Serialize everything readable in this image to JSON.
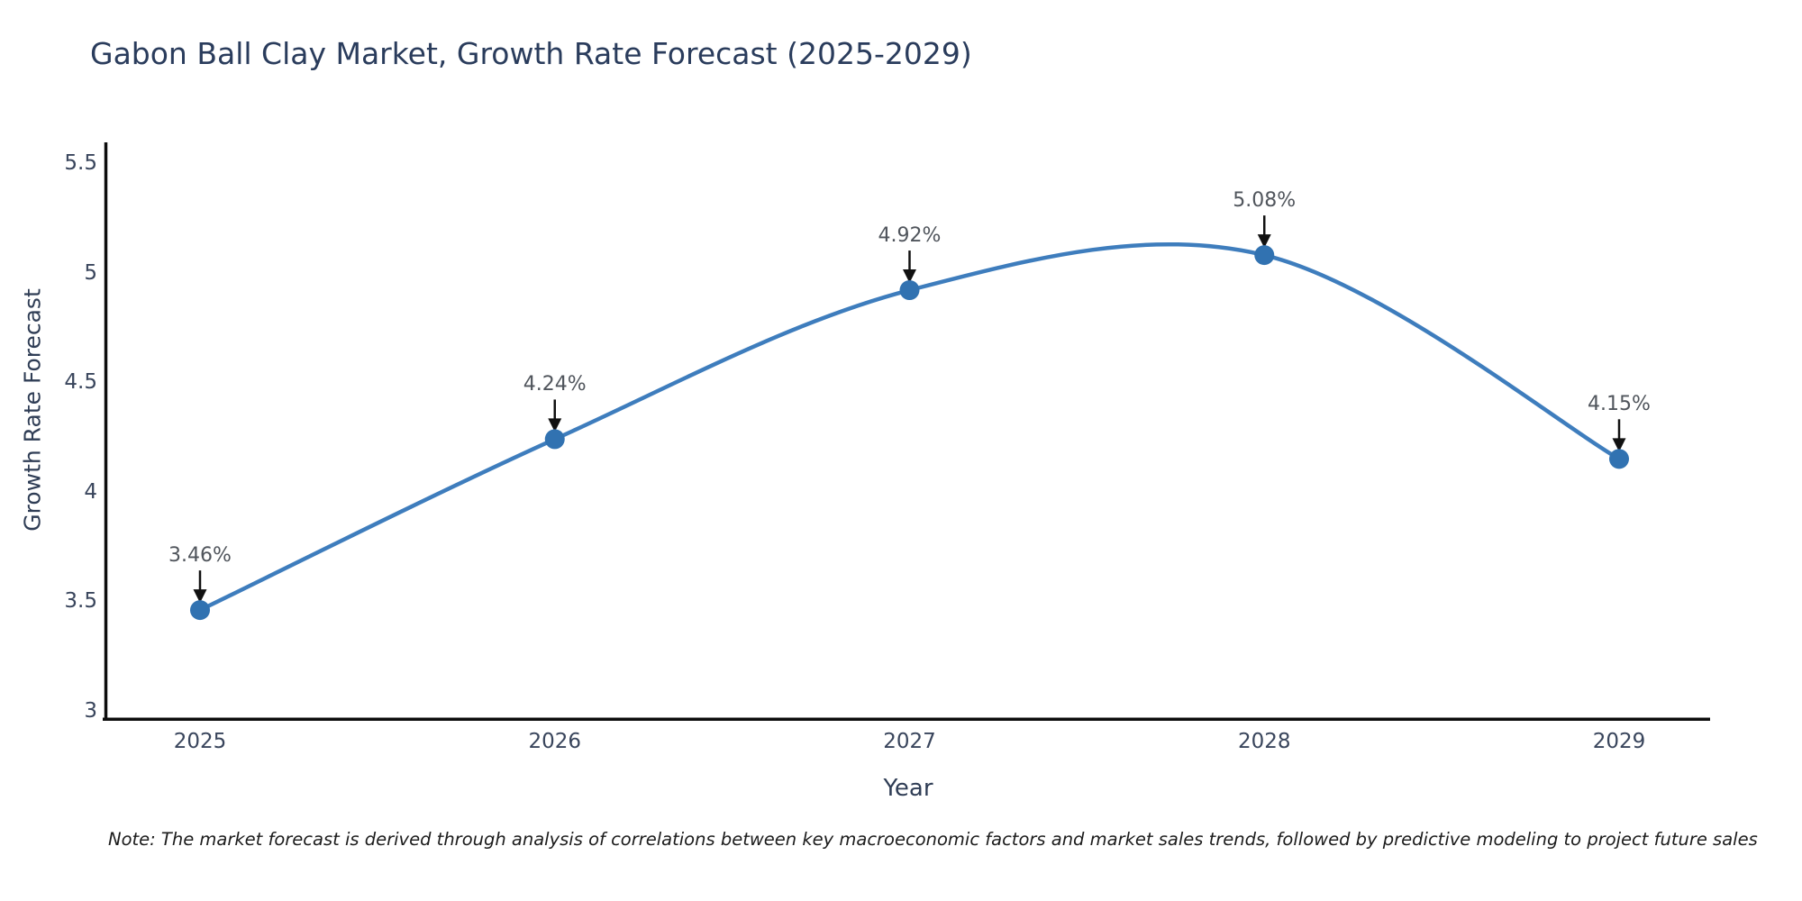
{
  "figure": {
    "title": "Gabon Ball Clay Market, Growth Rate Forecast (2025-2029)",
    "note": "Note: The market forecast is derived through analysis of correlations between key macroeconomic factors and market sales trends, followed by predictive modeling to project future sales",
    "colors": {
      "title_text": "#2a3c5c",
      "tick_text": "#39455c",
      "annotation_text": "#50555c",
      "line": "#3e7dbd",
      "marker": "#3172b1",
      "axis_spine": "#0d0d0d",
      "arrow": "#111111",
      "background": "#ffffff"
    }
  },
  "chart_data": {
    "type": "line",
    "title": "Gabon Ball Clay Market, Growth Rate Forecast (2025-2029)",
    "xlabel": "Year",
    "ylabel": "Growth Rate Forecast",
    "categories": [
      "2025",
      "2026",
      "2027",
      "2028",
      "2029"
    ],
    "series": [
      {
        "name": "Growth Rate Forecast",
        "values": [
          3.46,
          4.24,
          4.92,
          5.08,
          4.15
        ],
        "point_labels": [
          "3.46%",
          "4.24%",
          "4.92%",
          "5.08%",
          "4.15%"
        ]
      }
    ],
    "y_ticks": [
      "3",
      "3.5",
      "4",
      "4.5",
      "5",
      "5.5"
    ],
    "y_tick_values": [
      3,
      3.5,
      4,
      4.5,
      5,
      5.5
    ],
    "ylim": [
      3.0,
      5.6
    ],
    "line_shape": "spline",
    "markers": "circle",
    "annotations": "value labels with down arrows above each point",
    "grid": false,
    "legend": false
  }
}
